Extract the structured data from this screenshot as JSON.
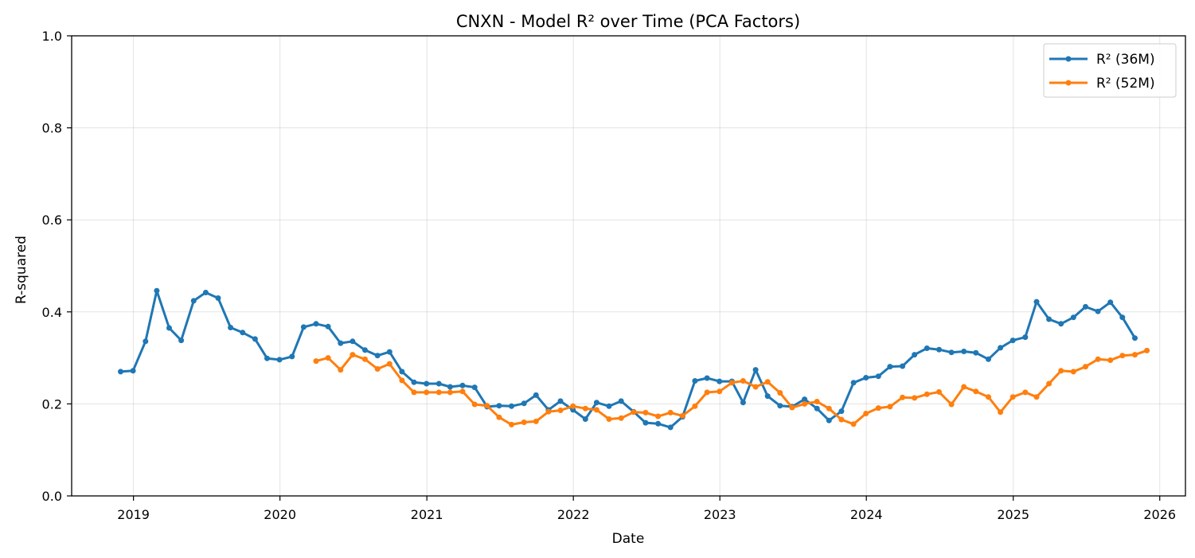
{
  "chart_data": {
    "type": "line",
    "title": "CNXN - Model R² over Time (PCA Factors)",
    "xlabel": "Date",
    "ylabel": "R-squared",
    "ylim": [
      0,
      1.0
    ],
    "xlim": [
      "2018-07-31",
      "2026-03-06"
    ],
    "x_ticks": [
      "2019",
      "2020",
      "2021",
      "2022",
      "2023",
      "2024",
      "2025",
      "2026"
    ],
    "y_ticks": [
      "0.0",
      "0.2",
      "0.4",
      "0.6",
      "0.8",
      "1.0"
    ],
    "grid": true,
    "legend_position": "top-right",
    "series": [
      {
        "name": "R² (36M)",
        "color": "#1f77b4",
        "points": [
          [
            "2018-11-30",
            0.27
          ],
          [
            "2018-12-31",
            0.272
          ],
          [
            "2019-01-31",
            0.336
          ],
          [
            "2019-02-28",
            0.446
          ],
          [
            "2019-03-31",
            0.365
          ],
          [
            "2019-04-30",
            0.338
          ],
          [
            "2019-05-31",
            0.424
          ],
          [
            "2019-06-30",
            0.442
          ],
          [
            "2019-07-31",
            0.43
          ],
          [
            "2019-08-31",
            0.366
          ],
          [
            "2019-09-30",
            0.355
          ],
          [
            "2019-10-31",
            0.341
          ],
          [
            "2019-11-30",
            0.299
          ],
          [
            "2019-12-31",
            0.296
          ],
          [
            "2020-01-31",
            0.303
          ],
          [
            "2020-02-29",
            0.367
          ],
          [
            "2020-03-31",
            0.374
          ],
          [
            "2020-04-30",
            0.368
          ],
          [
            "2020-05-31",
            0.332
          ],
          [
            "2020-06-30",
            0.336
          ],
          [
            "2020-07-31",
            0.317
          ],
          [
            "2020-08-31",
            0.305
          ],
          [
            "2020-09-30",
            0.313
          ],
          [
            "2020-10-31",
            0.27
          ],
          [
            "2020-11-30",
            0.247
          ],
          [
            "2020-12-31",
            0.244
          ],
          [
            "2021-01-31",
            0.244
          ],
          [
            "2021-02-28",
            0.237
          ],
          [
            "2021-03-31",
            0.24
          ],
          [
            "2021-04-30",
            0.236
          ],
          [
            "2021-05-31",
            0.194
          ],
          [
            "2021-06-30",
            0.196
          ],
          [
            "2021-07-31",
            0.195
          ],
          [
            "2021-08-31",
            0.201
          ],
          [
            "2021-09-30",
            0.219
          ],
          [
            "2021-10-31",
            0.187
          ],
          [
            "2021-11-30",
            0.206
          ],
          [
            "2021-12-31",
            0.187
          ],
          [
            "2022-01-31",
            0.167
          ],
          [
            "2022-02-28",
            0.203
          ],
          [
            "2022-03-31",
            0.195
          ],
          [
            "2022-04-30",
            0.206
          ],
          [
            "2022-05-31",
            0.183
          ],
          [
            "2022-06-30",
            0.159
          ],
          [
            "2022-07-31",
            0.157
          ],
          [
            "2022-08-31",
            0.149
          ],
          [
            "2022-09-30",
            0.172
          ],
          [
            "2022-10-31",
            0.25
          ],
          [
            "2022-11-30",
            0.256
          ],
          [
            "2022-12-31",
            0.249
          ],
          [
            "2023-01-31",
            0.249
          ],
          [
            "2023-02-28",
            0.203
          ],
          [
            "2023-03-31",
            0.274
          ],
          [
            "2023-04-30",
            0.217
          ],
          [
            "2023-05-31",
            0.196
          ],
          [
            "2023-06-30",
            0.194
          ],
          [
            "2023-07-31",
            0.21
          ],
          [
            "2023-08-31",
            0.19
          ],
          [
            "2023-09-30",
            0.164
          ],
          [
            "2023-10-31",
            0.184
          ],
          [
            "2023-11-30",
            0.246
          ],
          [
            "2023-12-31",
            0.257
          ],
          [
            "2024-01-31",
            0.26
          ],
          [
            "2024-02-29",
            0.281
          ],
          [
            "2024-03-31",
            0.282
          ],
          [
            "2024-04-30",
            0.307
          ],
          [
            "2024-05-31",
            0.321
          ],
          [
            "2024-06-30",
            0.318
          ],
          [
            "2024-07-31",
            0.312
          ],
          [
            "2024-08-31",
            0.314
          ],
          [
            "2024-09-30",
            0.311
          ],
          [
            "2024-10-31",
            0.297
          ],
          [
            "2024-11-30",
            0.322
          ],
          [
            "2024-12-31",
            0.338
          ],
          [
            "2025-01-31",
            0.345
          ],
          [
            "2025-02-28",
            0.422
          ],
          [
            "2025-03-31",
            0.384
          ],
          [
            "2025-04-30",
            0.374
          ],
          [
            "2025-05-31",
            0.388
          ],
          [
            "2025-06-30",
            0.411
          ],
          [
            "2025-07-31",
            0.401
          ],
          [
            "2025-08-31",
            0.421
          ],
          [
            "2025-09-30",
            0.388
          ],
          [
            "2025-10-31",
            0.343
          ]
        ]
      },
      {
        "name": "R² (52M)",
        "color": "#ff7f0e",
        "points": [
          [
            "2020-03-31",
            0.293
          ],
          [
            "2020-04-30",
            0.3
          ],
          [
            "2020-05-31",
            0.274
          ],
          [
            "2020-06-30",
            0.307
          ],
          [
            "2020-07-31",
            0.297
          ],
          [
            "2020-08-31",
            0.276
          ],
          [
            "2020-09-30",
            0.287
          ],
          [
            "2020-10-31",
            0.251
          ],
          [
            "2020-11-30",
            0.225
          ],
          [
            "2020-12-31",
            0.225
          ],
          [
            "2021-01-31",
            0.225
          ],
          [
            "2021-02-28",
            0.225
          ],
          [
            "2021-03-31",
            0.227
          ],
          [
            "2021-04-30",
            0.199
          ],
          [
            "2021-05-31",
            0.196
          ],
          [
            "2021-06-30",
            0.171
          ],
          [
            "2021-07-31",
            0.155
          ],
          [
            "2021-08-31",
            0.16
          ],
          [
            "2021-09-30",
            0.162
          ],
          [
            "2021-10-31",
            0.183
          ],
          [
            "2021-11-30",
            0.186
          ],
          [
            "2021-12-31",
            0.195
          ],
          [
            "2022-01-31",
            0.19
          ],
          [
            "2022-02-28",
            0.187
          ],
          [
            "2022-03-31",
            0.167
          ],
          [
            "2022-04-30",
            0.169
          ],
          [
            "2022-05-31",
            0.182
          ],
          [
            "2022-06-30",
            0.181
          ],
          [
            "2022-07-31",
            0.173
          ],
          [
            "2022-08-31",
            0.181
          ],
          [
            "2022-09-30",
            0.174
          ],
          [
            "2022-10-31",
            0.195
          ],
          [
            "2022-11-30",
            0.225
          ],
          [
            "2022-12-31",
            0.227
          ],
          [
            "2023-01-31",
            0.246
          ],
          [
            "2023-02-28",
            0.25
          ],
          [
            "2023-03-31",
            0.237
          ],
          [
            "2023-04-30",
            0.248
          ],
          [
            "2023-05-31",
            0.224
          ],
          [
            "2023-06-30",
            0.192
          ],
          [
            "2023-07-31",
            0.2
          ],
          [
            "2023-08-31",
            0.205
          ],
          [
            "2023-09-30",
            0.19
          ],
          [
            "2023-10-31",
            0.166
          ],
          [
            "2023-11-30",
            0.156
          ],
          [
            "2023-12-31",
            0.179
          ],
          [
            "2024-01-31",
            0.191
          ],
          [
            "2024-02-29",
            0.194
          ],
          [
            "2024-03-31",
            0.214
          ],
          [
            "2024-04-30",
            0.213
          ],
          [
            "2024-05-31",
            0.221
          ],
          [
            "2024-06-30",
            0.226
          ],
          [
            "2024-07-31",
            0.199
          ],
          [
            "2024-08-31",
            0.237
          ],
          [
            "2024-09-30",
            0.227
          ],
          [
            "2024-10-31",
            0.215
          ],
          [
            "2024-11-30",
            0.182
          ],
          [
            "2024-12-31",
            0.215
          ],
          [
            "2025-01-31",
            0.225
          ],
          [
            "2025-02-28",
            0.215
          ],
          [
            "2025-03-31",
            0.244
          ],
          [
            "2025-04-30",
            0.272
          ],
          [
            "2025-05-31",
            0.27
          ],
          [
            "2025-06-30",
            0.281
          ],
          [
            "2025-07-31",
            0.297
          ],
          [
            "2025-08-31",
            0.295
          ],
          [
            "2025-09-30",
            0.305
          ],
          [
            "2025-10-31",
            0.307
          ],
          [
            "2025-11-30",
            0.316
          ]
        ]
      }
    ]
  }
}
